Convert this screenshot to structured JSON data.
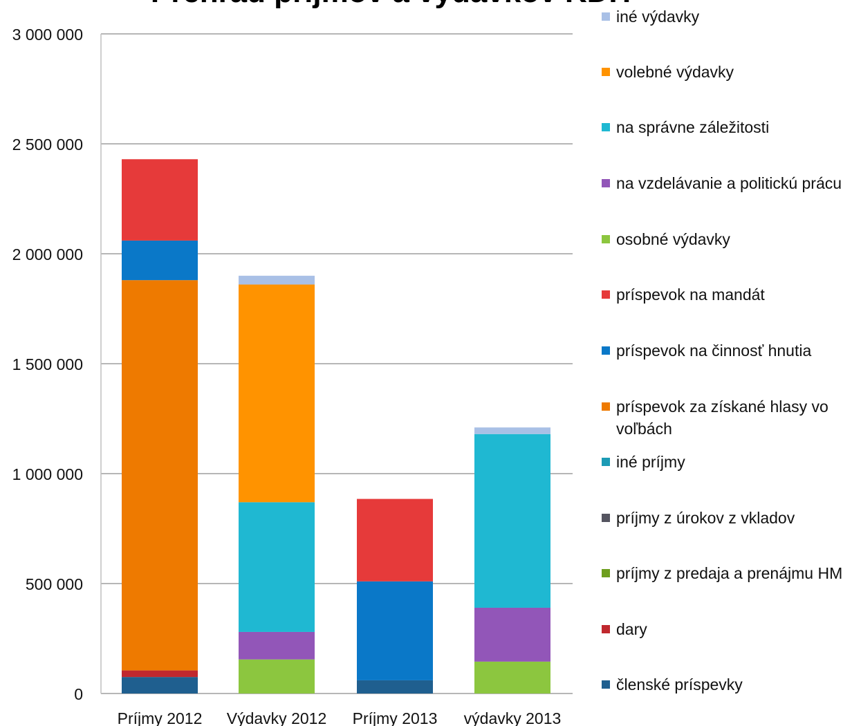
{
  "chart_data": {
    "type": "bar",
    "stacked": true,
    "title": "Prehľad príjmov a výdavkov KDH",
    "categories": [
      "Príjmy 2012",
      "Výdavky 2012",
      "Príjmy 2013",
      "výdavky 2013"
    ],
    "ylim": [
      0,
      3000000
    ],
    "yticks": [
      0,
      500000,
      1000000,
      1500000,
      2000000,
      2500000,
      3000000
    ],
    "ytick_labels": [
      "0",
      "500 000",
      "1 000 000",
      "1 500 000",
      "2 000 000",
      "2 500 000",
      "3 000 000"
    ],
    "grid": true,
    "legend_position": "right",
    "series": [
      {
        "name": "členské príspevky",
        "color": "#1F5F8F",
        "values": [
          75000,
          0,
          60000,
          0
        ]
      },
      {
        "name": "dary",
        "color": "#C0282E",
        "values": [
          30000,
          0,
          0,
          0
        ]
      },
      {
        "name": "príjmy z predaja a prenájmu HM",
        "color": "#6E9E1E",
        "values": [
          0,
          0,
          0,
          0
        ]
      },
      {
        "name": "príjmy z úrokov z vkladov",
        "color": "#555560",
        "values": [
          0,
          0,
          0,
          0
        ]
      },
      {
        "name": "iné príjmy",
        "color": "#1C9BB5",
        "values": [
          0,
          0,
          0,
          0
        ]
      },
      {
        "name": "príspevok za získané hlasy vo voľbách",
        "color": "#EE7A00",
        "values": [
          1775000,
          0,
          0,
          0
        ]
      },
      {
        "name": "príspevok na činnosť hnutia",
        "color": "#0A78C8",
        "values": [
          180000,
          0,
          450000,
          0
        ]
      },
      {
        "name": "príspevok na mandát",
        "color": "#E63A3A",
        "values": [
          370000,
          0,
          375000,
          0
        ]
      },
      {
        "name": "osobné výdavky",
        "color": "#8CC63F",
        "values": [
          0,
          155000,
          0,
          145000
        ]
      },
      {
        "name": "na vzdelávanie a politickú prácu",
        "color": "#9256B8",
        "values": [
          0,
          125000,
          0,
          245000
        ]
      },
      {
        "name": "na správne záležitosti",
        "color": "#1FB8D2",
        "values": [
          0,
          590000,
          0,
          790000
        ]
      },
      {
        "name": "volebné výdavky",
        "color": "#FF9300",
        "values": [
          0,
          990000,
          0,
          0
        ]
      },
      {
        "name": "iné výdavky",
        "color": "#A9C0E6",
        "values": [
          0,
          40000,
          0,
          30000
        ]
      }
    ]
  }
}
